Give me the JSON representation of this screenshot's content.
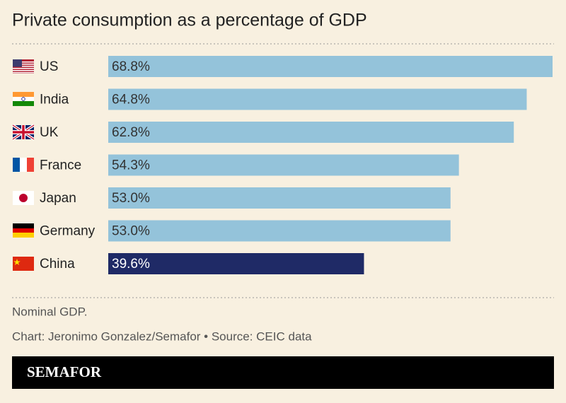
{
  "chart_data": {
    "type": "bar",
    "orientation": "horizontal",
    "title": "Private consumption as a percentage of GDP",
    "categories": [
      "US",
      "India",
      "UK",
      "France",
      "Japan",
      "Germany",
      "China"
    ],
    "values": [
      68.8,
      64.8,
      62.8,
      54.3,
      53.0,
      53.0,
      39.6
    ],
    "value_labels": [
      "68.8%",
      "64.8%",
      "62.8%",
      "54.3%",
      "53.0%",
      "53.0%",
      "39.6%"
    ],
    "colors": [
      "#94c3da",
      "#94c3da",
      "#94c3da",
      "#94c3da",
      "#94c3da",
      "#94c3da",
      "#1f2a66"
    ],
    "note": "Nominal GDP.",
    "source": "Chart: Jeronimo Gonzalez/Semafor • Source: CEIC data",
    "brand": "SEMAFOR"
  }
}
